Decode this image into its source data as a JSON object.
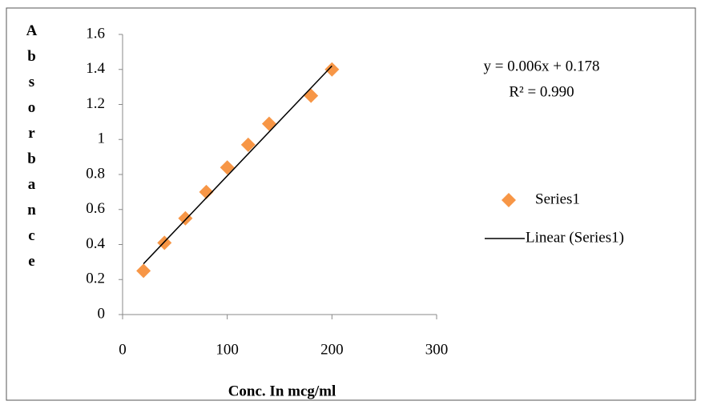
{
  "chart_data": {
    "type": "scatter",
    "xlabel": "Conc. In mcg/ml",
    "ylabel": "Absorbance",
    "annotations": [
      "y = 0.006x + 0.178",
      "R² = 0.990"
    ],
    "series": [
      {
        "name": "Series1",
        "color": "#f79646",
        "kind": "marker",
        "x": [
          20,
          40,
          60,
          80,
          100,
          120,
          140,
          180,
          200
        ],
        "values": [
          0.25,
          0.41,
          0.55,
          0.7,
          0.84,
          0.97,
          1.09,
          1.25,
          1.4
        ]
      },
      {
        "name": "Linear (Series1)",
        "color": "#000000",
        "kind": "line",
        "x": [
          20,
          200
        ],
        "values": [
          0.29,
          1.42
        ]
      }
    ],
    "xlim": [
      0,
      300
    ],
    "xticks": [
      0,
      100,
      200,
      300
    ],
    "ylim": [
      0,
      1.6
    ],
    "yticks": [
      0,
      0.2,
      0.4,
      0.6,
      0.8,
      1,
      1.2,
      1.4,
      1.6
    ],
    "grid": false,
    "legend": "right"
  }
}
